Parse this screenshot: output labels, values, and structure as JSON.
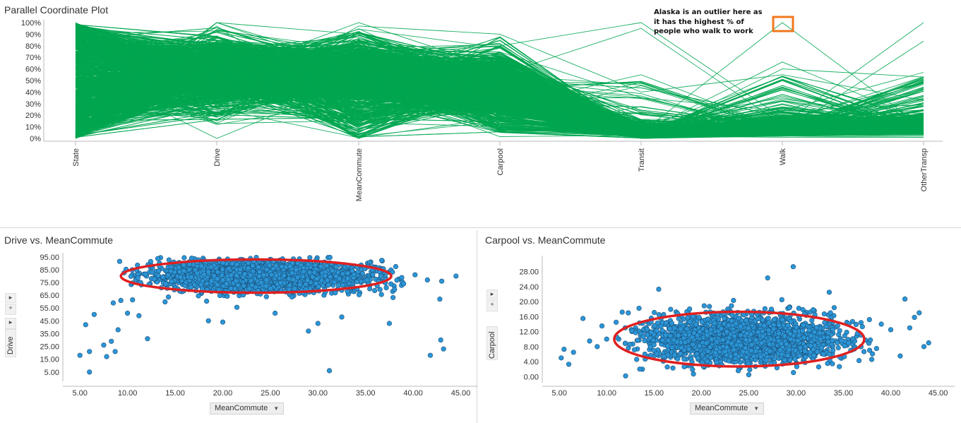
{
  "chart_data": [
    {
      "type": "parallel-coordinates",
      "title": "Parallel Coordinate Plot",
      "dimensions": [
        "State",
        "Drive",
        "MeanCommute",
        "Carpool",
        "Transit",
        "Walk",
        "OtherTransp"
      ],
      "y_ticks": [
        "100%",
        "90%",
        "80%",
        "70%",
        "60%",
        "50%",
        "40%",
        "30%",
        "20%",
        "10%",
        "0%"
      ],
      "ylim": [
        0,
        100
      ],
      "line_color": "#00a650",
      "annotation": {
        "lines": [
          "Alaska is an outlier here as",
          "it has the highest % of",
          "people who walk to work"
        ],
        "highlight_dimension": "Walk",
        "highlight_value": 100,
        "highlight_color": "#f07820"
      },
      "sample_lines": [
        [
          0,
          100,
          90,
          35,
          0,
          2,
          1
        ],
        [
          50,
          93,
          77,
          70,
          2,
          1,
          1
        ],
        [
          100,
          32,
          63,
          66,
          5,
          100,
          9
        ],
        [
          75,
          58,
          77,
          58,
          3,
          20,
          22
        ],
        [
          25,
          55,
          100,
          60,
          10,
          7,
          4
        ],
        [
          5,
          27,
          97,
          90,
          40,
          55,
          33
        ],
        [
          10,
          36,
          75,
          80,
          100,
          18,
          10
        ],
        [
          60,
          0,
          50,
          65,
          0,
          30,
          4
        ],
        [
          20,
          97,
          18,
          55,
          95,
          12,
          100
        ],
        [
          30,
          82,
          30,
          48,
          5,
          66,
          15
        ],
        [
          90,
          72,
          62,
          50,
          12,
          5,
          84
        ],
        [
          45,
          88,
          40,
          47,
          35,
          24,
          57
        ],
        [
          85,
          40,
          8,
          43,
          0,
          60,
          53
        ],
        [
          15,
          22,
          20,
          27,
          55,
          8,
          28
        ],
        [
          35,
          83,
          70,
          60,
          8,
          4,
          6
        ],
        [
          65,
          49,
          58,
          38,
          14,
          3,
          2
        ],
        [
          55,
          12,
          32,
          22,
          2,
          18,
          8
        ]
      ]
    },
    {
      "type": "scatter",
      "title": "Drive vs. MeanCommute",
      "xlabel": "MeanCommute",
      "ylabel": "Drive",
      "xlim": [
        3.5,
        46
      ],
      "ylim": [
        1,
        96
      ],
      "x_ticks": [
        "5.00",
        "10.00",
        "15.00",
        "20.00",
        "25.00",
        "30.00",
        "35.00",
        "40.00",
        "45.00"
      ],
      "y_ticks": [
        "95.00",
        "85.00",
        "75.00",
        "65.00",
        "55.00",
        "45.00",
        "35.00",
        "25.00",
        "15.00",
        "5.00"
      ],
      "point_color": "#2b95d6",
      "dense_cluster": {
        "x_range": [
          10,
          38
        ],
        "y_range": [
          62,
          92
        ],
        "center": [
          24,
          80
        ]
      },
      "outliers": [
        {
          "x": 6.0,
          "y": 5
        },
        {
          "x": 5.0,
          "y": 18
        },
        {
          "x": 6.0,
          "y": 21
        },
        {
          "x": 5.6,
          "y": 42
        },
        {
          "x": 6.5,
          "y": 50
        },
        {
          "x": 7.5,
          "y": 26
        },
        {
          "x": 7.8,
          "y": 17
        },
        {
          "x": 8.3,
          "y": 29
        },
        {
          "x": 8.7,
          "y": 21
        },
        {
          "x": 9.0,
          "y": 38
        },
        {
          "x": 8.5,
          "y": 59
        },
        {
          "x": 9.3,
          "y": 61
        },
        {
          "x": 10.0,
          "y": 51
        },
        {
          "x": 12.1,
          "y": 31
        },
        {
          "x": 11.2,
          "y": 49
        },
        {
          "x": 31.2,
          "y": 6
        },
        {
          "x": 30.0,
          "y": 43
        },
        {
          "x": 29.0,
          "y": 37
        },
        {
          "x": 32.5,
          "y": 48
        },
        {
          "x": 37.5,
          "y": 43
        },
        {
          "x": 41.8,
          "y": 18
        },
        {
          "x": 42.9,
          "y": 30
        },
        {
          "x": 43.2,
          "y": 23
        },
        {
          "x": 42.8,
          "y": 62
        },
        {
          "x": 44.5,
          "y": 80
        },
        {
          "x": 43.0,
          "y": 76
        },
        {
          "x": 40.2,
          "y": 81
        },
        {
          "x": 41.5,
          "y": 77
        },
        {
          "x": 39.0,
          "y": 74
        },
        {
          "x": 18.5,
          "y": 45
        },
        {
          "x": 20.0,
          "y": 44
        },
        {
          "x": 25.5,
          "y": 51
        }
      ],
      "highlight": {
        "shape": "ellipse",
        "center": [
          23.5,
          80
        ],
        "rx_data": 14.2,
        "ry_data": 13,
        "color": "#e02020"
      }
    },
    {
      "type": "scatter",
      "title": "Carpool vs. MeanCommute",
      "xlabel": "MeanCommute",
      "ylabel": "Carpool",
      "xlim": [
        3.5,
        46
      ],
      "ylim": [
        -0.5,
        31.5
      ],
      "x_ticks": [
        "5.00",
        "10.00",
        "15.00",
        "20.00",
        "25.00",
        "30.00",
        "35.00",
        "40.00",
        "45.00"
      ],
      "y_ticks": [
        "28.00",
        "24.00",
        "20.00",
        "16.00",
        "12.00",
        "8.00",
        "4.00",
        "0.00"
      ],
      "point_color": "#2b95d6",
      "dense_cluster": {
        "x_range": [
          12,
          38
        ],
        "y_range": [
          3,
          18
        ],
        "center": [
          24.5,
          10
        ]
      },
      "outliers": [
        {
          "x": 29.7,
          "y": 29.3
        },
        {
          "x": 27.0,
          "y": 26.3
        },
        {
          "x": 15.5,
          "y": 23.3
        },
        {
          "x": 28.5,
          "y": 20.5
        },
        {
          "x": 33.5,
          "y": 22.5
        },
        {
          "x": 41.5,
          "y": 20.7
        },
        {
          "x": 5.5,
          "y": 7.3
        },
        {
          "x": 6.5,
          "y": 6.5
        },
        {
          "x": 6.0,
          "y": 3.3
        },
        {
          "x": 5.2,
          "y": 5.0
        },
        {
          "x": 8.2,
          "y": 9.5
        },
        {
          "x": 9.5,
          "y": 13.5
        },
        {
          "x": 10.0,
          "y": 10.0
        },
        {
          "x": 11.0,
          "y": 14.5
        },
        {
          "x": 12.0,
          "y": 0.2
        },
        {
          "x": 43.5,
          "y": 8.0
        },
        {
          "x": 44.0,
          "y": 9.0
        },
        {
          "x": 42.5,
          "y": 15.8
        },
        {
          "x": 43.0,
          "y": 17.0
        },
        {
          "x": 41.0,
          "y": 5.5
        },
        {
          "x": 42.0,
          "y": 13.0
        },
        {
          "x": 39.0,
          "y": 14.0
        },
        {
          "x": 40.0,
          "y": 12.5
        },
        {
          "x": 7.5,
          "y": 15.5
        },
        {
          "x": 9.0,
          "y": 8.0
        },
        {
          "x": 13.5,
          "y": 2.0
        },
        {
          "x": 25.0,
          "y": 0.5
        },
        {
          "x": 38.5,
          "y": 7.5
        }
      ],
      "highlight": {
        "shape": "ellipse",
        "center": [
          24,
          10
        ],
        "rx_data": 13.2,
        "ry_data": 7.3,
        "color": "#e02020"
      }
    }
  ],
  "drive_panel": {
    "ylabel_control_plus": "+"
  },
  "carpool_panel": {
    "ylabel_control_plus": "+"
  }
}
